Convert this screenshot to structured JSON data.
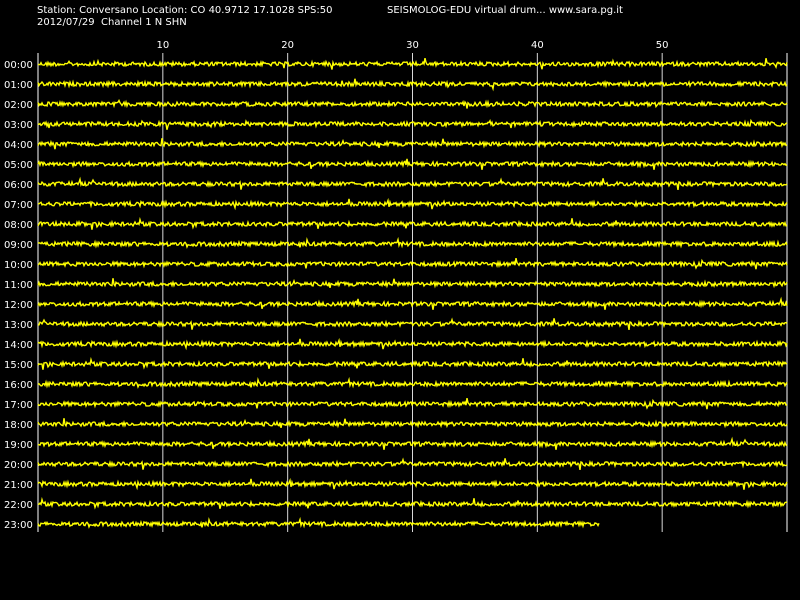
{
  "header": {
    "station_line": "Station: Conversano Location: CO 40.9712 17.1028 SPS:50",
    "date_line": "2012/07/29  Channel 1 N SHN",
    "app_line": "SEISMOLOG-EDU virtual drum... www.sara.pg.it"
  },
  "colors": {
    "background": "#000000",
    "trace": "#ffff00",
    "grid": "#ffffff",
    "text": "#ffffff"
  },
  "chart_data": {
    "type": "line",
    "title": "",
    "xlabel": "",
    "ylabel": "",
    "grid": true,
    "xlim": [
      0,
      60
    ],
    "x_ticks": [
      10,
      20,
      30,
      40,
      50
    ],
    "rows": [
      "00:00",
      "01:00",
      "02:00",
      "03:00",
      "04:00",
      "05:00",
      "06:00",
      "07:00",
      "08:00",
      "09:00",
      "10:00",
      "11:00",
      "12:00",
      "13:00",
      "14:00",
      "15:00",
      "16:00",
      "17:00",
      "18:00",
      "19:00",
      "20:00",
      "21:00",
      "22:00",
      "23:00"
    ],
    "row_end_minutes": [
      60,
      60,
      60,
      60,
      60,
      60,
      60,
      60,
      60,
      60,
      60,
      60,
      60,
      60,
      60,
      60,
      60,
      60,
      60,
      60,
      60,
      60,
      60,
      45
    ],
    "series_color": "#ffff00"
  }
}
